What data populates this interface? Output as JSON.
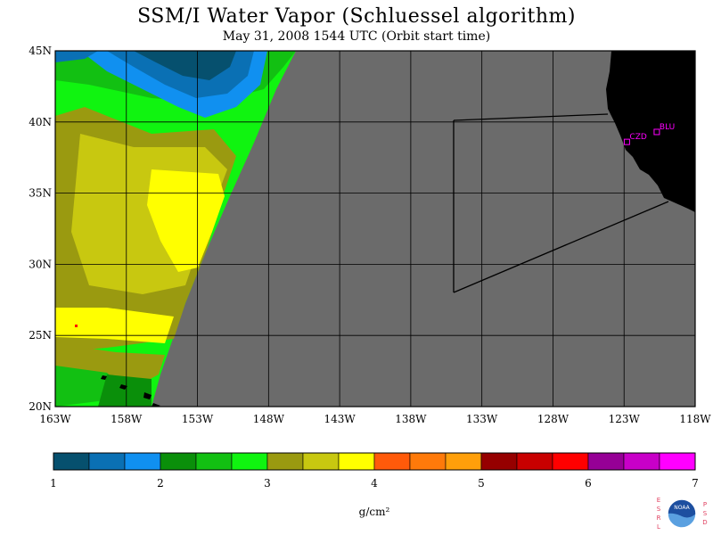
{
  "title": "SSM/I Water Vapor (Schluessel algorithm)",
  "subtitle": "May 31, 2008  1544 UTC  (Orbit start time)",
  "map": {
    "lon_range": [
      -163,
      -118
    ],
    "lat_range": [
      20,
      45
    ],
    "lon_ticks": [
      {
        "value": -163,
        "label": "163W"
      },
      {
        "value": -158,
        "label": "158W"
      },
      {
        "value": -153,
        "label": "153W"
      },
      {
        "value": -148,
        "label": "148W"
      },
      {
        "value": -143,
        "label": "143W"
      },
      {
        "value": -138,
        "label": "138W"
      },
      {
        "value": -133,
        "label": "133W"
      },
      {
        "value": -128,
        "label": "128W"
      },
      {
        "value": -123,
        "label": "123W"
      },
      {
        "value": -118,
        "label": "118W"
      }
    ],
    "lat_ticks": [
      {
        "value": 45,
        "label": "45N"
      },
      {
        "value": 40,
        "label": "40N"
      },
      {
        "value": 35,
        "label": "35N"
      },
      {
        "value": 30,
        "label": "30N"
      },
      {
        "value": 25,
        "label": "25N"
      },
      {
        "value": 20,
        "label": "20N"
      }
    ],
    "no_data_color": "#6b6b6b",
    "land_color": "#000000",
    "sites": [
      {
        "label": "CZD",
        "lon": -122.8,
        "lat": 38.6
      },
      {
        "label": "BLU",
        "lon": -120.7,
        "lat": 39.3
      }
    ]
  },
  "colorbar": {
    "colors": [
      "#06506e",
      "#0a70b4",
      "#1090f0",
      "#0a8f0a",
      "#12c012",
      "#10f410",
      "#9a9a10",
      "#c8c810",
      "#ffff00",
      "#ff5a0a",
      "#ff7a0a",
      "#ff9f0a",
      "#960000",
      "#c80000",
      "#ff0000",
      "#960096",
      "#c800c8",
      "#ff00ff"
    ],
    "ticks": [
      "1",
      "2",
      "3",
      "4",
      "5",
      "6",
      "7"
    ],
    "unit": "g/cm²"
  },
  "logo": {
    "left_letters": [
      "E",
      "S",
      "R",
      "L"
    ],
    "right_letters": [
      "P",
      "S",
      "D"
    ],
    "center_text": "NOAA"
  }
}
